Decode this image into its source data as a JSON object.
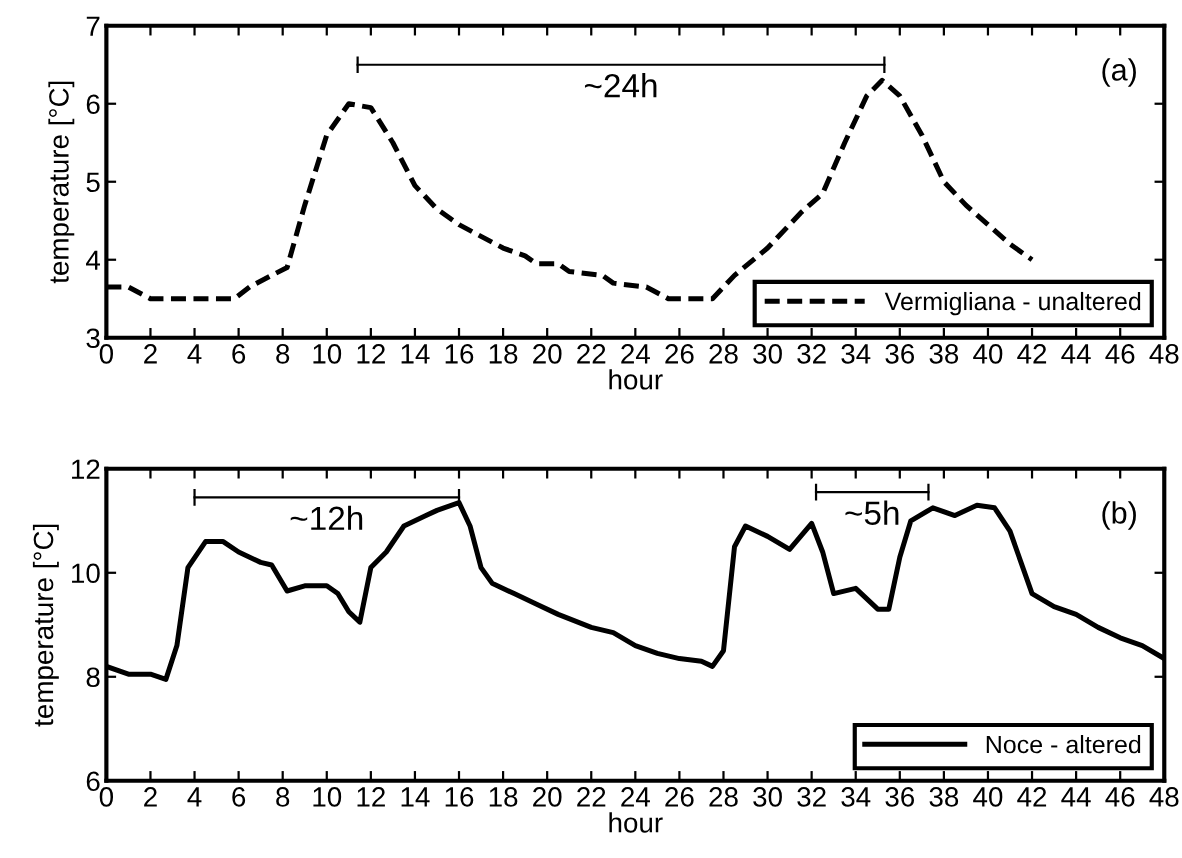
{
  "chart_data": [
    {
      "type": "line",
      "xlabel": "hour",
      "ylabel": "temperature [°C]",
      "xlim": [
        0,
        48
      ],
      "xticks": [
        0,
        2,
        4,
        6,
        8,
        10,
        12,
        14,
        16,
        18,
        20,
        22,
        24,
        26,
        28,
        30,
        32,
        34,
        36,
        38,
        40,
        42,
        44,
        46,
        48
      ],
      "ylim": [
        3,
        7
      ],
      "yticks": [
        3,
        4,
        5,
        6,
        7
      ],
      "legend": "bottom right",
      "line_style": "dashed",
      "grid": false,
      "annotations": [
        "(a)",
        {
          "text": "~24h",
          "x": 23.35,
          "y": 6.5
        }
      ],
      "series": [
        {
          "name": "Vermigliana - unaltered",
          "color": "#000000",
          "x": [
            0,
            1,
            2,
            3,
            4,
            5,
            5.8,
            6.5,
            7.5,
            8.2,
            9,
            10,
            11,
            12,
            13,
            14,
            15,
            16,
            17,
            18,
            19,
            19.5,
            20.5,
            21,
            22.5,
            23,
            24.5,
            25.5,
            27.5,
            28.5,
            30,
            31.5,
            32.5,
            33.5,
            34.5,
            35.2,
            36,
            37,
            38,
            39,
            40,
            41,
            42
          ],
          "values": [
            3.65,
            3.65,
            3.5,
            3.5,
            3.5,
            3.5,
            3.5,
            3.65,
            3.8,
            3.9,
            4.7,
            5.6,
            6.0,
            5.95,
            5.5,
            4.95,
            4.65,
            4.45,
            4.3,
            4.15,
            4.05,
            3.95,
            3.95,
            3.85,
            3.8,
            3.7,
            3.65,
            3.5,
            3.5,
            3.8,
            4.15,
            4.6,
            4.85,
            5.5,
            6.1,
            6.3,
            6.1,
            5.6,
            5.0,
            4.7,
            4.45,
            4.2,
            4.0
          ]
        },
        {
          "type": "line",
          "line_style": "solid",
          "color": "#000000",
          "x": [
            11.4,
            35.3
          ],
          "values": [
            6.5,
            6.5
          ]
        }
      ]
    },
    {
      "type": "line",
      "xlabel": "hour",
      "ylabel": "temperature [°C]",
      "xlim": [
        0,
        48
      ],
      "xticks": [
        0,
        2,
        4,
        6,
        8,
        10,
        12,
        14,
        16,
        18,
        20,
        22,
        24,
        26,
        28,
        30,
        32,
        34,
        36,
        38,
        40,
        42,
        44,
        46,
        48
      ],
      "ylim": [
        6,
        12
      ],
      "yticks": [
        6,
        8,
        10,
        12
      ],
      "legend": "bottom right",
      "line_style": "solid",
      "grid": false,
      "annotations": [
        "(b)",
        {
          "text": "~12h",
          "x": 10,
          "y": 11.45
        },
        {
          "text": "~5h",
          "x": 34.75,
          "y": 11.55
        }
      ],
      "series": [
        {
          "name": "Noce - altered",
          "color": "#000000",
          "x": [
            0,
            1,
            2,
            2.7,
            3.2,
            3.7,
            4.5,
            5.3,
            6,
            7,
            7.5,
            8.2,
            9,
            10,
            10.5,
            11,
            11.5,
            12,
            12.7,
            13.5,
            14.5,
            15,
            16,
            16.5,
            17,
            17.5,
            18.5,
            19.5,
            20.5,
            22,
            23,
            24,
            25,
            26,
            27,
            27.5,
            28,
            28.5,
            29,
            30,
            31,
            31.5,
            32,
            32.5,
            33,
            34,
            35,
            35.5,
            36,
            36.5,
            37.5,
            38.5,
            39.5,
            40.3,
            41,
            42,
            43,
            44,
            45,
            46,
            47,
            48
          ],
          "values": [
            8.2,
            8.05,
            8.05,
            7.95,
            8.6,
            10.1,
            10.6,
            10.6,
            10.4,
            10.2,
            10.15,
            9.65,
            9.75,
            9.75,
            9.6,
            9.25,
            9.05,
            10.1,
            10.4,
            10.9,
            11.1,
            11.2,
            11.35,
            10.9,
            10.1,
            9.8,
            9.6,
            9.4,
            9.2,
            8.95,
            8.85,
            8.6,
            8.45,
            8.35,
            8.3,
            8.2,
            8.5,
            10.5,
            10.9,
            10.7,
            10.45,
            10.7,
            10.95,
            10.4,
            9.6,
            9.7,
            9.3,
            9.3,
            10.3,
            11.0,
            11.25,
            11.1,
            11.3,
            11.25,
            10.8,
            9.6,
            9.35,
            9.2,
            8.95,
            8.75,
            8.6,
            8.35
          ]
        },
        {
          "type": "line",
          "color": "#000000",
          "x": [
            4,
            16
          ],
          "values": [
            11.45,
            11.45
          ]
        },
        {
          "type": "line",
          "color": "#000000",
          "x": [
            32.2,
            37.3
          ],
          "values": [
            11.55,
            11.55
          ]
        }
      ]
    }
  ]
}
